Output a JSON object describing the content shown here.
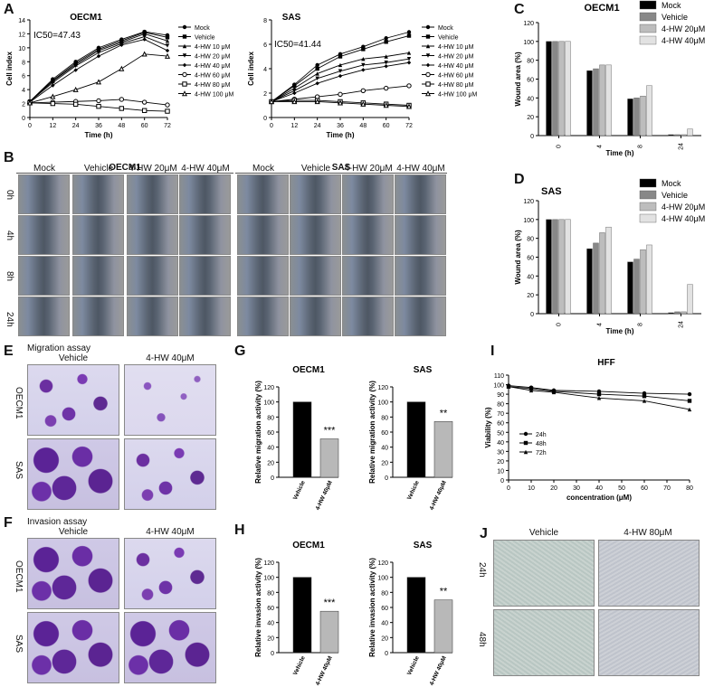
{
  "panels": {
    "A": "A",
    "B": "B",
    "C": "C",
    "D": "D",
    "E": "E",
    "F": "F",
    "G": "G",
    "H": "H",
    "I": "I",
    "J": "J"
  },
  "panel_a": {
    "oecm1": {
      "title": "OECM1",
      "ic50": "IC50=47.43",
      "ylabel": "Cell index",
      "xlabel": "Time (h)",
      "xticks": [
        "0",
        "12",
        "24",
        "36",
        "48",
        "60",
        "72"
      ],
      "yticks": [
        "0",
        "2",
        "4",
        "6",
        "8",
        "10",
        "12",
        "14"
      ]
    },
    "sas": {
      "title": "SAS",
      "ic50": "IC50=41.44",
      "ylabel": "Cell index",
      "xlabel": "Time (h)",
      "xticks": [
        "0",
        "12",
        "24",
        "36",
        "48",
        "60",
        "72"
      ],
      "yticks": [
        "0",
        "2",
        "4",
        "6",
        "8"
      ]
    },
    "legend": [
      "Mock",
      "Vehicle",
      "4-HW 10 μM",
      "4-HW 20 μM",
      "4-HW 40 μM",
      "4-HW 60 μM",
      "4-HW 80 μM",
      "4-HW 100 μM"
    ]
  },
  "panel_b": {
    "oecm1_title": "OECM1",
    "sas_title": "SAS",
    "cols": [
      "Mock",
      "Vehicle",
      "4-HW 20μM",
      "4-HW 40μM"
    ],
    "rows": [
      "0h",
      "4h",
      "8h",
      "24h"
    ]
  },
  "panel_c": {
    "title": "OECM1",
    "ylabel": "Wound area (%)",
    "xlabel": "Time (h)"
  },
  "panel_d": {
    "title": "SAS",
    "ylabel": "Wound area (%)",
    "xlabel": "Time (h)"
  },
  "wound_legend": [
    "Mock",
    "Vehicle",
    "4-HW 20μM",
    "4-HW 40μM"
  ],
  "wound_xticks": [
    "0",
    "4",
    "8",
    "24"
  ],
  "wound_yticks": [
    "0",
    "20",
    "40",
    "60",
    "80",
    "100",
    "120"
  ],
  "panel_e": {
    "title": "Migration assay",
    "cols": [
      "Vehicle",
      "4-HW 40μM"
    ],
    "rows": [
      "OECM1",
      "SAS"
    ]
  },
  "panel_f": {
    "title": "Invasion assay",
    "cols": [
      "Vehicle",
      "4-HW 40μM"
    ],
    "rows": [
      "OECM1",
      "SAS"
    ]
  },
  "panel_g": {
    "titles": [
      "OECM1",
      "SAS"
    ],
    "ylabel": "Relative migration activity (%)",
    "xticks": [
      "Vehicle",
      "4-HW 40μM"
    ],
    "sig": [
      "***",
      "**"
    ]
  },
  "panel_h": {
    "titles": [
      "OECM1",
      "SAS"
    ],
    "ylabel": "Relative invasion activity (%)",
    "xticks": [
      "Vehicle",
      "4-HW 40μM"
    ],
    "sig": [
      "***",
      "**"
    ]
  },
  "bar_yticks": [
    "0",
    "20",
    "40",
    "60",
    "80",
    "100",
    "120"
  ],
  "panel_i": {
    "title": "HFF",
    "ylabel": "Viability (%)",
    "xlabel": "concentration (μM)",
    "xticks": [
      "0",
      "10",
      "20",
      "30",
      "40",
      "50",
      "60",
      "70",
      "80"
    ],
    "yticks": [
      "0",
      "10",
      "20",
      "30",
      "40",
      "50",
      "60",
      "70",
      "80",
      "90",
      "100",
      "110"
    ],
    "legend": [
      "24h",
      "48h",
      "72h"
    ]
  },
  "panel_j": {
    "cols": [
      "Vehicle",
      "4-HW 80μM"
    ],
    "rows": [
      "24h",
      "48h"
    ]
  },
  "chart_data": [
    {
      "type": "line",
      "panel": "A-OECM1",
      "title": "OECM1",
      "xlabel": "Time (h)",
      "ylabel": "Cell index",
      "xlim": [
        0,
        72
      ],
      "ylim": [
        0,
        14
      ],
      "x": [
        0,
        12,
        24,
        36,
        48,
        60,
        72
      ],
      "series": [
        {
          "name": "Mock",
          "values": [
            2.3,
            5.5,
            8.0,
            10.0,
            11.2,
            12.3,
            11.8
          ]
        },
        {
          "name": "Vehicle",
          "values": [
            2.3,
            5.3,
            7.8,
            9.8,
            11.0,
            12.2,
            11.5
          ]
        },
        {
          "name": "4-HW 10 μM",
          "values": [
            2.3,
            5.2,
            7.6,
            9.6,
            10.8,
            12.0,
            11.0
          ]
        },
        {
          "name": "4-HW 20 μM",
          "values": [
            2.3,
            5.0,
            7.4,
            9.3,
            10.6,
            11.6,
            10.3
          ]
        },
        {
          "name": "4-HW 40 μM",
          "values": [
            2.2,
            4.6,
            6.8,
            8.8,
            10.4,
            11.2,
            9.6
          ]
        },
        {
          "name": "4-HW 60 μM",
          "values": [
            2.1,
            2.2,
            2.3,
            2.4,
            2.6,
            2.2,
            1.8
          ]
        },
        {
          "name": "4-HW 80 μM",
          "values": [
            2.1,
            2.0,
            1.9,
            1.6,
            1.3,
            1.0,
            0.9
          ]
        },
        {
          "name": "4-HW 100 μM",
          "values": [
            2.1,
            3.0,
            4.0,
            5.1,
            7.0,
            9.1,
            8.8
          ]
        }
      ]
    },
    {
      "type": "line",
      "panel": "A-SAS",
      "title": "SAS",
      "xlabel": "Time (h)",
      "ylabel": "Cell index",
      "xlim": [
        0,
        72
      ],
      "ylim": [
        0,
        8
      ],
      "x": [
        0,
        12,
        24,
        36,
        48,
        60,
        72
      ],
      "series": [
        {
          "name": "Mock",
          "values": [
            1.3,
            2.7,
            4.3,
            5.2,
            5.8,
            6.5,
            7.0
          ]
        },
        {
          "name": "Vehicle",
          "values": [
            1.3,
            2.6,
            4.0,
            5.0,
            5.6,
            6.2,
            6.7
          ]
        },
        {
          "name": "4-HW 10 μM",
          "values": [
            1.3,
            2.4,
            3.6,
            4.3,
            4.8,
            5.0,
            5.3
          ]
        },
        {
          "name": "4-HW 20 μM",
          "values": [
            1.3,
            2.2,
            3.2,
            3.8,
            4.3,
            4.5,
            4.8
          ]
        },
        {
          "name": "4-HW 40 μM",
          "values": [
            1.3,
            2.0,
            2.8,
            3.4,
            3.9,
            4.2,
            4.5
          ]
        },
        {
          "name": "4-HW 60 μM",
          "values": [
            1.3,
            1.5,
            1.7,
            1.9,
            2.2,
            2.4,
            2.6
          ]
        },
        {
          "name": "4-HW 80 μM",
          "values": [
            1.3,
            1.4,
            1.4,
            1.3,
            1.2,
            1.1,
            1.0
          ]
        },
        {
          "name": "4-HW 100 μM",
          "values": [
            1.3,
            1.3,
            1.3,
            1.2,
            1.1,
            1.0,
            0.9
          ]
        }
      ]
    },
    {
      "type": "bar",
      "panel": "C",
      "title": "OECM1",
      "xlabel": "Time (h)",
      "ylabel": "Wound area (%)",
      "ylim": [
        0,
        120
      ],
      "categories": [
        "0",
        "4",
        "8",
        "24"
      ],
      "series": [
        {
          "name": "Mock",
          "values": [
            100,
            69,
            39,
            1
          ]
        },
        {
          "name": "Vehicle",
          "values": [
            100,
            71,
            40,
            1
          ]
        },
        {
          "name": "4-HW 20μM",
          "values": [
            100,
            75,
            42,
            1
          ]
        },
        {
          "name": "4-HW 40μM",
          "values": [
            100,
            75,
            53,
            7
          ]
        }
      ]
    },
    {
      "type": "bar",
      "panel": "D",
      "title": "SAS",
      "xlabel": "Time (h)",
      "ylabel": "Wound area (%)",
      "ylim": [
        0,
        120
      ],
      "categories": [
        "0",
        "4",
        "8",
        "24"
      ],
      "series": [
        {
          "name": "Mock",
          "values": [
            100,
            69,
            55,
            1
          ]
        },
        {
          "name": "Vehicle",
          "values": [
            100,
            75,
            58,
            2
          ]
        },
        {
          "name": "4-HW 20μM",
          "values": [
            100,
            86,
            68,
            2
          ]
        },
        {
          "name": "4-HW 40μM",
          "values": [
            100,
            92,
            73,
            31
          ]
        }
      ]
    },
    {
      "type": "bar",
      "panel": "G-OECM1",
      "title": "OECM1",
      "ylabel": "Relative migration activity (%)",
      "ylim": [
        0,
        120
      ],
      "categories": [
        "Vehicle",
        "4-HW 40μM"
      ],
      "values": [
        100,
        51
      ]
    },
    {
      "type": "bar",
      "panel": "G-SAS",
      "title": "SAS",
      "ylabel": "Relative migration activity (%)",
      "ylim": [
        0,
        120
      ],
      "categories": [
        "Vehicle",
        "4-HW 40μM"
      ],
      "values": [
        100,
        74
      ]
    },
    {
      "type": "bar",
      "panel": "H-OECM1",
      "title": "OECM1",
      "ylabel": "Relative invasion activity (%)",
      "ylim": [
        0,
        120
      ],
      "categories": [
        "Vehicle",
        "4-HW 40μM"
      ],
      "values": [
        100,
        55
      ]
    },
    {
      "type": "bar",
      "panel": "H-SAS",
      "title": "SAS",
      "ylabel": "Relative invasion activity (%)",
      "ylim": [
        0,
        120
      ],
      "categories": [
        "Vehicle",
        "4-HW 40μM"
      ],
      "values": [
        100,
        70
      ]
    },
    {
      "type": "line",
      "panel": "I",
      "title": "HFF",
      "xlabel": "concentration (μM)",
      "ylabel": "Viability (%)",
      "xlim": [
        0,
        80
      ],
      "ylim": [
        0,
        110
      ],
      "x": [
        0,
        10,
        20,
        40,
        60,
        80
      ],
      "series": [
        {
          "name": "24h",
          "values": [
            99,
            97,
            94,
            93,
            91,
            90
          ]
        },
        {
          "name": "48h",
          "values": [
            98,
            96,
            93,
            90,
            88,
            83
          ]
        },
        {
          "name": "72h",
          "values": [
            98,
            94,
            92,
            86,
            83,
            74
          ]
        }
      ]
    }
  ]
}
